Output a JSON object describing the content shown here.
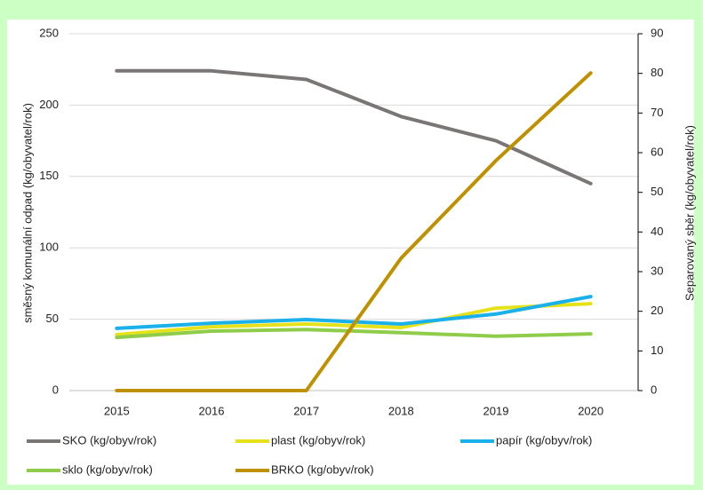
{
  "chart_data": {
    "type": "line",
    "ylabel": "směsný komunální odpad (kg/obyvatel/rok)",
    "y2label": "Separovaný sběr (kg/obyvatel/rok)",
    "categories": [
      "2015",
      "2016",
      "2017",
      "2018",
      "2019",
      "2020"
    ],
    "ylim": [
      0,
      250
    ],
    "yticks": [
      0,
      50,
      100,
      150,
      200,
      250
    ],
    "y2lim": [
      0,
      90
    ],
    "y2ticks": [
      0,
      10,
      20,
      30,
      40,
      50,
      60,
      70,
      80,
      90
    ],
    "grid": true,
    "legend": "bottom",
    "series": [
      {
        "name": "SKO (kg/obyv/rok)",
        "color": "#7a7676",
        "values": [
          224,
          224,
          218,
          192,
          175,
          145
        ]
      },
      {
        "name": "plast (kg/obyv/rok)",
        "color": "#e6e21a",
        "axis": "y2",
        "values": [
          14.1,
          16.1,
          16.8,
          15.9,
          20.8,
          21.9
        ]
      },
      {
        "name": "papír (kg/obyv/rok)",
        "color": "#1ab0ea",
        "axis": "y2",
        "values": [
          15.7,
          17.0,
          17.9,
          16.8,
          19.3,
          23.7
        ]
      },
      {
        "name": "sklo (kg/obyv/rok)",
        "color": "#8fcc4a",
        "axis": "y2",
        "values": [
          13.4,
          15.0,
          15.4,
          14.6,
          13.7,
          14.3
        ]
      },
      {
        "name": "BRKO (kg/obyv/rok)",
        "color": "#bf9000",
        "axis": "y2",
        "values": [
          0,
          0,
          0,
          33.4,
          58,
          80.1
        ]
      }
    ]
  }
}
